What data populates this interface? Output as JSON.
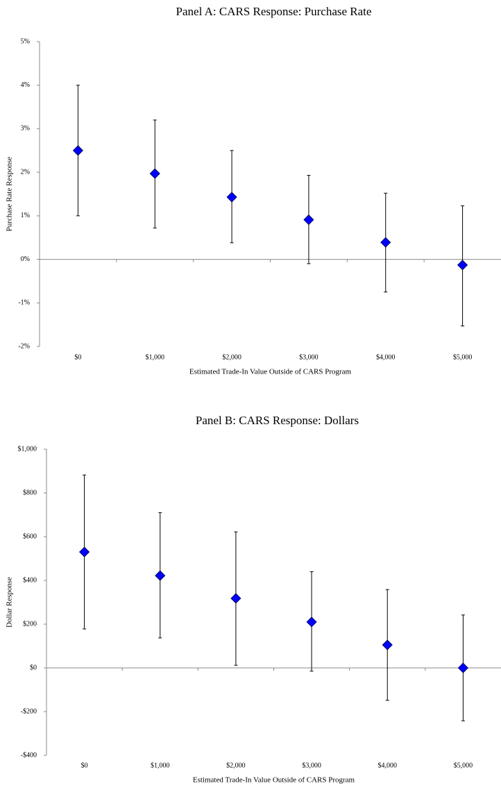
{
  "chart_data": [
    {
      "type": "errorbar",
      "title": "Panel A: CARS Response: Purchase Rate",
      "xlabel": "Estimated Trade-In Value Outside of CARS Program",
      "ylabel": "Purchase Rate Response",
      "categories": [
        "$0",
        "$1,000",
        "$2,000",
        "$3,000",
        "$4,000",
        "$5,000"
      ],
      "values": [
        2.5,
        1.97,
        1.43,
        0.91,
        0.39,
        -0.13
      ],
      "lower": [
        1.0,
        0.72,
        0.38,
        -0.1,
        -0.75,
        -1.53
      ],
      "upper": [
        4.0,
        3.2,
        2.5,
        1.93,
        1.52,
        1.23
      ],
      "color": "#0000ff",
      "ylim": [
        -2,
        5
      ],
      "yticks": [
        {
          "value": -2,
          "label": "-2%"
        },
        {
          "value": -1,
          "label": "-1%"
        },
        {
          "value": 0,
          "label": "0%"
        },
        {
          "value": 1,
          "label": "1%"
        },
        {
          "value": 2,
          "label": "2%"
        },
        {
          "value": 3,
          "label": "3%"
        },
        {
          "value": 4,
          "label": "4%"
        },
        {
          "value": 5,
          "label": "5%"
        }
      ]
    },
    {
      "type": "errorbar",
      "title": "Panel B: CARS Response: Dollars",
      "xlabel": "Estimated Trade-In Value Outside of CARS Program",
      "ylabel": "Dollar Response",
      "categories": [
        "$0",
        "$1,000",
        "$2,000",
        "$3,000",
        "$4,000",
        "$5,000"
      ],
      "values": [
        530,
        422,
        318,
        210,
        105,
        0
      ],
      "lower": [
        178,
        137,
        12,
        -15,
        -148,
        -242
      ],
      "upper": [
        882,
        710,
        622,
        440,
        358,
        242
      ],
      "color": "#0000ff",
      "ylim": [
        -400,
        1000
      ],
      "yticks": [
        {
          "value": -400,
          "label": "-$400"
        },
        {
          "value": -200,
          "label": "-$200"
        },
        {
          "value": 0,
          "label": "$0"
        },
        {
          "value": 200,
          "label": "$200"
        },
        {
          "value": 400,
          "label": "$400"
        },
        {
          "value": 600,
          "label": "$600"
        },
        {
          "value": 800,
          "label": "$800"
        },
        {
          "value": 1000,
          "label": "$1,000"
        }
      ]
    }
  ]
}
